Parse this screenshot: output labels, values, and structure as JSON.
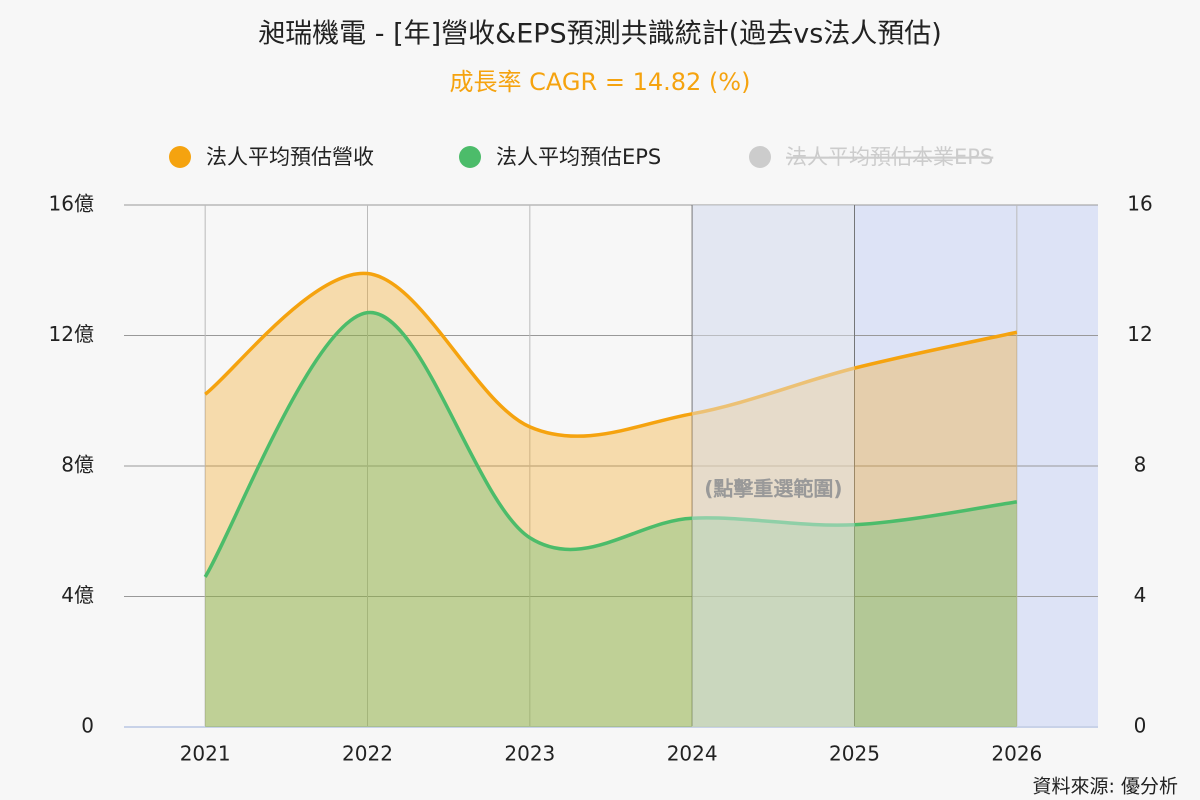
{
  "chart_data": {
    "type": "area",
    "title": "昶瑞機電 - [年]營收&EPS預測共識統計(過去vs法人預估)",
    "subtitle": "成長率 CAGR = 14.82 (%)",
    "annotation": "(點擊重選範圍)",
    "source": "資料來源: 優分析",
    "categories": [
      "2021",
      "2022",
      "2023",
      "2024",
      "2025",
      "2026"
    ],
    "series": [
      {
        "name": "法人平均預估營收",
        "color": "#f5a30f",
        "values": [
          10.2,
          13.9,
          9.2,
          9.6,
          11.0,
          12.1
        ]
      },
      {
        "name": "法人平均預估EPS",
        "color": "#4cbc6a",
        "axis": "y2",
        "values": [
          4.6,
          12.7,
          5.8,
          6.4,
          6.2,
          6.9
        ]
      },
      {
        "name": "法人平均預估本業EPS",
        "color": "#cccccc",
        "axis": "y2",
        "hidden": true,
        "values": [
          null,
          null,
          null,
          null,
          null,
          null
        ]
      }
    ],
    "ylim": [
      0,
      16
    ],
    "yticks": [
      {
        "value": 0,
        "label": "0"
      },
      {
        "value": 4,
        "label": "4億"
      },
      {
        "value": 8,
        "label": "8億"
      },
      {
        "value": 12,
        "label": "12億"
      },
      {
        "value": 16,
        "label": "16億"
      }
    ],
    "y2lim": [
      0,
      16
    ],
    "y2ticks": [
      0,
      4,
      8,
      12,
      16
    ],
    "grid": true,
    "legend": "top"
  }
}
